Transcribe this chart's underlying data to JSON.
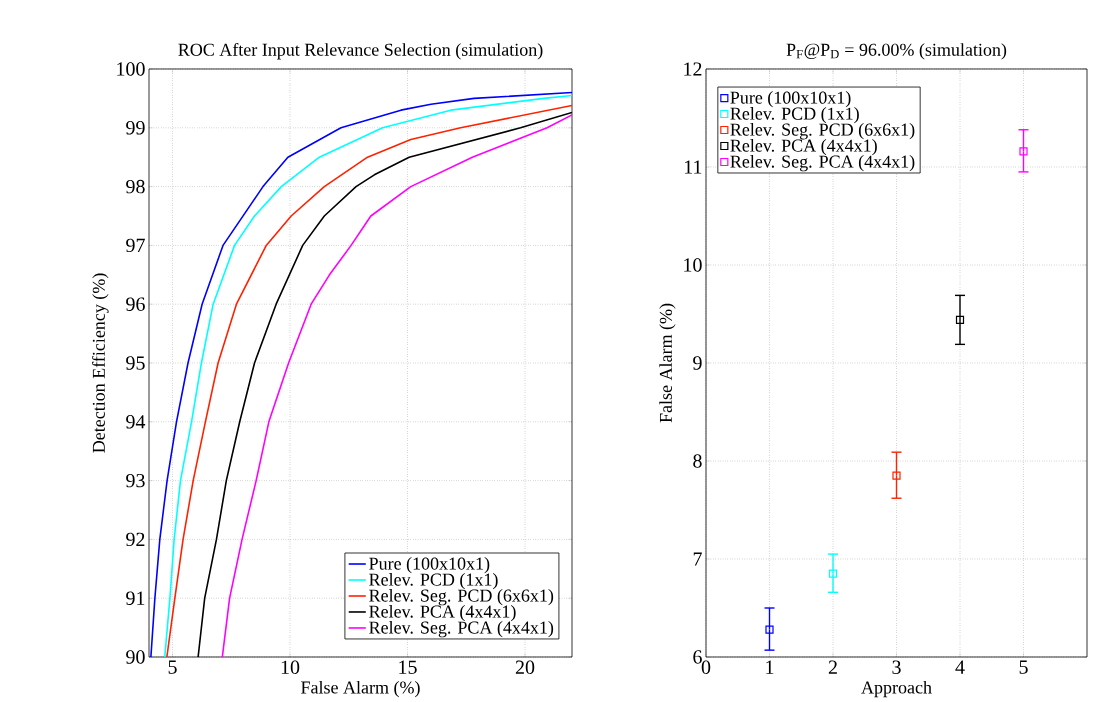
{
  "chart_data": [
    {
      "type": "line",
      "title": "ROC After Input Relevance Selection (simulation)",
      "xlabel": "False Alarm (%)",
      "ylabel": "Detection Efficiency (%)",
      "xlim": [
        4,
        22
      ],
      "ylim": [
        90,
        100
      ],
      "xticks": [
        5,
        10,
        15,
        20
      ],
      "yticks": [
        90,
        91,
        92,
        93,
        94,
        95,
        96,
        97,
        98,
        99,
        100
      ],
      "grid": true,
      "legend": "bottom right",
      "line_style": "solid",
      "series": [
        {
          "name": "Pure (100x10x1)",
          "color": "#0000ff",
          "x": [
            4.08,
            4.25,
            4.46,
            4.77,
            5.17,
            5.66,
            6.26,
            7.15,
            8.85,
            9.91,
            12.17,
            14.72,
            16.0,
            17.83,
            22
          ],
          "values": [
            90,
            91,
            92,
            93,
            94,
            95,
            96,
            97,
            98,
            98.5,
            99,
            99.3,
            99.4,
            99.5,
            99.6
          ]
        },
        {
          "name": "Relev. PCD (1x1)",
          "color": "#00ffff",
          "x": [
            4.67,
            4.89,
            5.07,
            5.34,
            5.81,
            6.23,
            6.73,
            7.64,
            8.49,
            9.63,
            11.25,
            13.94,
            16.84,
            20.8,
            22
          ],
          "values": [
            90,
            91,
            92,
            93,
            94,
            95,
            96,
            97,
            97.5,
            98,
            98.5,
            99,
            99.3,
            99.5,
            99.55
          ]
        },
        {
          "name": "Relev. Seg. PCD (6x6x1)",
          "color": "#ff2200",
          "x": [
            4.76,
            5.1,
            5.45,
            5.88,
            6.4,
            6.94,
            7.72,
            8.99,
            10.05,
            11.46,
            13.3,
            15.14,
            17.26,
            22
          ],
          "values": [
            90,
            91,
            92,
            93,
            94,
            95,
            96,
            97,
            97.5,
            98,
            98.5,
            98.8,
            99,
            99.38
          ]
        },
        {
          "name": "Relev. PCA (4x4x1)",
          "color": "#000000",
          "x": [
            6.09,
            6.37,
            6.87,
            7.29,
            7.86,
            8.49,
            9.41,
            10.54,
            11.46,
            12.81,
            13.59,
            15.07,
            19.81,
            22
          ],
          "values": [
            90,
            91,
            92,
            93,
            94,
            95,
            96,
            97,
            97.5,
            98,
            98.2,
            98.5,
            99,
            99.26
          ]
        },
        {
          "name": "Relev. Seg. PCA (4x4x1)",
          "color": "#ff00ff",
          "x": [
            7.12,
            7.43,
            7.96,
            8.56,
            9.1,
            9.94,
            10.9,
            11.68,
            12.6,
            13.44,
            15.14,
            17.76,
            20.94,
            22
          ],
          "values": [
            90,
            91,
            92,
            93,
            94,
            95,
            96,
            96.5,
            97,
            97.5,
            98,
            98.5,
            99,
            99.22
          ]
        }
      ]
    },
    {
      "type": "scatter",
      "title": "P$_{F}$@P$_{D}$ = 96.00% (simulation)",
      "xlabel": "Approach",
      "ylabel": "False Alarm (%)",
      "xlim": [
        0,
        6
      ],
      "ylim": [
        6,
        12
      ],
      "xticks": [
        0,
        1,
        2,
        3,
        4,
        5
      ],
      "yticks": [
        6,
        7,
        8,
        9,
        10,
        11,
        12
      ],
      "grid": true,
      "legend": "top left",
      "marker": "square",
      "series": [
        {
          "name": "Pure (100x10x1)",
          "color": "#0000ff",
          "x": [
            1
          ],
          "values": [
            6.28
          ],
          "errors": [
            [
              6.07,
              6.5
            ]
          ]
        },
        {
          "name": "Relev. PCD (1x1)",
          "color": "#00ffff",
          "x": [
            2
          ],
          "values": [
            6.85
          ],
          "errors": [
            [
              6.66,
              7.05
            ]
          ]
        },
        {
          "name": "Relev. Seg. PCD (6x6x1)",
          "color": "#ff2200",
          "x": [
            3
          ],
          "values": [
            7.85
          ],
          "errors": [
            [
              7.62,
              8.09
            ]
          ]
        },
        {
          "name": "Relev. PCA (4x4x1)",
          "color": "#000000",
          "x": [
            4
          ],
          "values": [
            9.44
          ],
          "errors": [
            [
              9.19,
              9.69
            ]
          ]
        },
        {
          "name": "Relev. Seg. PCA (4x4x1)",
          "color": "#ff00ff",
          "x": [
            5
          ],
          "values": [
            11.16
          ],
          "errors": [
            [
              10.95,
              11.38
            ]
          ]
        }
      ]
    }
  ]
}
